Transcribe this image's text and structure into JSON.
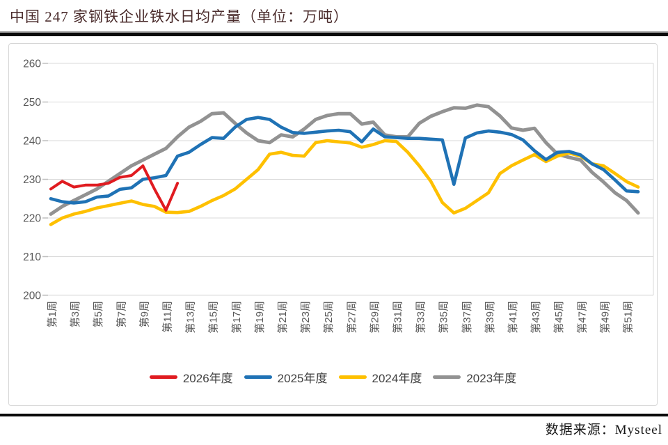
{
  "page": {
    "title": "中国 247 家钢铁企业铁水日均产量（单位：万吨）",
    "source_note": "数据来源：Mysteel"
  },
  "chart_data": {
    "type": "line",
    "title": "中国 247 家钢铁企业铁水日均产量（单位：万吨）",
    "unit": "万吨",
    "grid": "horizontal",
    "legend_position": "bottom",
    "ylim": [
      200,
      260
    ],
    "y_ticks": [
      260,
      250,
      240,
      230,
      220,
      210,
      200
    ],
    "x_weeks_total": 52,
    "x_tick_labels": [
      "第1周",
      "第3周",
      "第5周",
      "第7周",
      "第9周",
      "第11周",
      "第13周",
      "第15周",
      "第17周",
      "第19周",
      "第21周",
      "第23周",
      "第25周",
      "第27周",
      "第29周",
      "第31周",
      "第33周",
      "第35周",
      "第37周",
      "第39周",
      "第41周",
      "第43周",
      "第45周",
      "第47周",
      "第49周",
      "第51周"
    ],
    "series": [
      {
        "name": "2026年度",
        "color": "#e01b20",
        "values": [
          227.5,
          229.5,
          228,
          228.5,
          228.5,
          229,
          230.5,
          231,
          233.5,
          227.5,
          222,
          229
        ]
      },
      {
        "name": "2025年度",
        "color": "#1f72b5",
        "values": [
          225,
          224.2,
          223.9,
          224.2,
          225.4,
          225.7,
          227.4,
          227.8,
          230,
          230.4,
          231,
          236,
          237,
          239,
          240.8,
          240.6,
          243.5,
          245.5,
          246,
          245.5,
          243.5,
          242.1,
          241.9,
          242.2,
          242.5,
          242.7,
          242.3,
          239.7,
          243,
          241,
          240.8,
          240.6,
          240.6,
          240.4,
          240.2,
          228.7,
          240.7,
          242,
          242.5,
          242.2,
          241.6,
          240.2,
          237.4,
          235.1,
          237,
          237.2,
          236.3,
          234,
          232.5,
          229.8,
          227,
          226.8
        ]
      },
      {
        "name": "2024年度",
        "color": "#fec000",
        "values": [
          218.3,
          220,
          221,
          221.7,
          222.6,
          223.2,
          223.8,
          224.4,
          223.5,
          223,
          221.5,
          221.4,
          221.7,
          223,
          224.5,
          225.8,
          227.5,
          230,
          232.5,
          236.5,
          237,
          236.2,
          236,
          239.5,
          240,
          239.7,
          239.4,
          238.3,
          239,
          240,
          239.8,
          237,
          233.5,
          229.5,
          224,
          221.3,
          222.5,
          224.5,
          226.5,
          231.5,
          233.5,
          235,
          236.4,
          234.6,
          236,
          236.8,
          236,
          234,
          233.5,
          231.5,
          229.4,
          228
        ]
      },
      {
        "name": "2023年度",
        "color": "#929292",
        "values": [
          221,
          223,
          224.5,
          226,
          227.5,
          229.5,
          231.5,
          233.5,
          235,
          236.5,
          238,
          241,
          243.5,
          245,
          247,
          247.2,
          244.5,
          242,
          240,
          239.5,
          241.5,
          241,
          243,
          245.5,
          246.5,
          247,
          247,
          244.3,
          244.8,
          241.5,
          241,
          241,
          244.5,
          246.3,
          247.5,
          248.5,
          248.4,
          249.2,
          248.8,
          246.4,
          243.3,
          242.7,
          243.2,
          239.5,
          236.5,
          235.7,
          235,
          231.8,
          229.3,
          226.5,
          224.5,
          221.3
        ]
      }
    ],
    "axis_colors": {
      "tick_label": "#595959",
      "gridline": "#d9d9d9",
      "tick_mark": "#bfbfbf"
    }
  }
}
